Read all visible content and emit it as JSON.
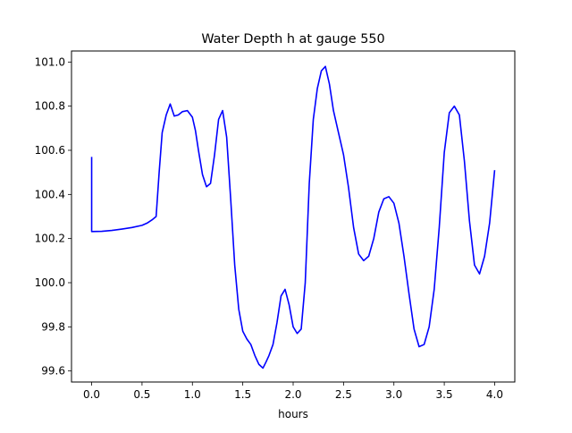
{
  "chart_data": {
    "type": "line",
    "title": "Water Depth h at gauge 550",
    "xlabel": "hours",
    "ylabel": "",
    "xlim": [
      -0.2,
      4.2
    ],
    "ylim": [
      99.55,
      101.05
    ],
    "grid": false,
    "x_ticks": [
      0.0,
      0.5,
      1.0,
      1.5,
      2.0,
      2.5,
      3.0,
      3.5,
      4.0
    ],
    "x_tick_labels": [
      "0.0",
      "0.5",
      "1.0",
      "1.5",
      "2.0",
      "2.5",
      "3.0",
      "3.5",
      "4.0"
    ],
    "y_ticks": [
      99.6,
      99.8,
      100.0,
      100.2,
      100.4,
      100.6,
      100.8,
      101.0
    ],
    "y_tick_labels": [
      "99.6",
      "99.8",
      "100.0",
      "100.2",
      "100.4",
      "100.6",
      "100.8",
      "101.0"
    ],
    "series": [
      {
        "color": "#0000ff",
        "x": [
          0.0,
          0.0,
          0.1,
          0.2,
          0.3,
          0.4,
          0.5,
          0.55,
          0.6,
          0.64,
          0.67,
          0.7,
          0.74,
          0.78,
          0.82,
          0.86,
          0.9,
          0.95,
          1.0,
          1.03,
          1.06,
          1.1,
          1.14,
          1.18,
          1.22,
          1.26,
          1.3,
          1.34,
          1.38,
          1.42,
          1.46,
          1.5,
          1.54,
          1.58,
          1.62,
          1.66,
          1.7,
          1.73,
          1.76,
          1.8,
          1.84,
          1.88,
          1.92,
          1.96,
          2.0,
          2.04,
          2.08,
          2.12,
          2.16,
          2.2,
          2.24,
          2.28,
          2.32,
          2.36,
          2.4,
          2.45,
          2.5,
          2.55,
          2.6,
          2.65,
          2.7,
          2.75,
          2.8,
          2.85,
          2.9,
          2.95,
          3.0,
          3.05,
          3.1,
          3.15,
          3.2,
          3.25,
          3.3,
          3.35,
          3.4,
          3.45,
          3.5,
          3.55,
          3.6,
          3.65,
          3.7,
          3.75,
          3.8,
          3.85,
          3.9,
          3.95,
          4.0
        ],
        "values": [
          100.57,
          100.232,
          100.233,
          100.237,
          100.243,
          100.25,
          100.26,
          100.27,
          100.285,
          100.3,
          100.5,
          100.68,
          100.76,
          100.81,
          100.755,
          100.76,
          100.775,
          100.78,
          100.75,
          100.69,
          100.6,
          100.49,
          100.435,
          100.45,
          100.58,
          100.74,
          100.78,
          100.66,
          100.38,
          100.08,
          99.88,
          99.78,
          99.745,
          99.72,
          99.67,
          99.63,
          99.613,
          99.64,
          99.67,
          99.72,
          99.82,
          99.94,
          99.97,
          99.9,
          99.8,
          99.77,
          99.79,
          100.0,
          100.45,
          100.74,
          100.88,
          100.96,
          100.98,
          100.9,
          100.78,
          100.68,
          100.58,
          100.43,
          100.25,
          100.13,
          100.1,
          100.12,
          100.2,
          100.32,
          100.38,
          100.39,
          100.36,
          100.27,
          100.12,
          99.95,
          99.79,
          99.71,
          99.72,
          99.8,
          99.97,
          100.25,
          100.59,
          100.77,
          100.8,
          100.76,
          100.55,
          100.28,
          100.08,
          100.04,
          100.12,
          100.27,
          100.51
        ]
      }
    ]
  }
}
